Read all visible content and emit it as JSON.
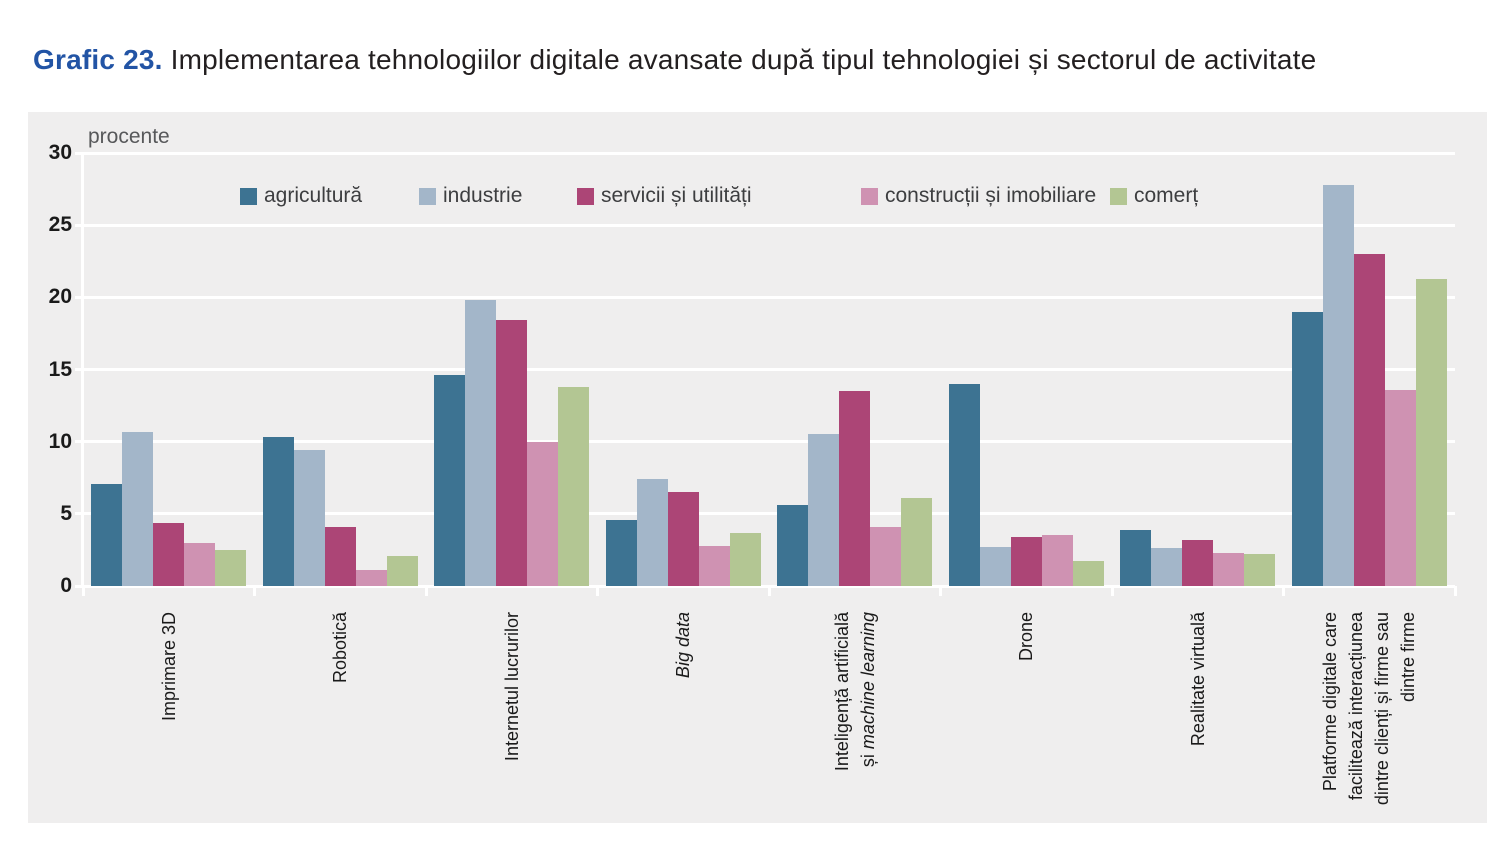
{
  "title": {
    "prefix": "Grafic 23.",
    "text": "Implementarea tehnologiilor digitale avansate după tipul tehnologiei și sectorul de activitate"
  },
  "chart_data": {
    "type": "bar",
    "title": "Grafic 23. Implementarea tehnologiilor digitale avansate după tipul tehnologiei și sectorul de activitate",
    "unit_label": "procente",
    "ylim": [
      0,
      30
    ],
    "yticks": [
      0,
      5,
      10,
      15,
      20,
      25,
      30
    ],
    "grid": true,
    "legend_position": "top-inside",
    "panel_bg": "#efeeee",
    "gridline_color": "#ffffff",
    "categories": [
      "Imprimare 3D",
      "Robotică",
      "Internetul lucrurilor",
      "Big data",
      "Inteligență artificială și machine learning",
      "Drone",
      "Realitate virtuală",
      "Platforme digitale care facilitează interacțiunea dintre clienți și firme sau dintre firme"
    ],
    "x_label_lines": [
      [
        [
          {
            "t": "Imprimare 3D"
          }
        ]
      ],
      [
        [
          {
            "t": "Robotică"
          }
        ]
      ],
      [
        [
          {
            "t": "Internetul lucrurilor"
          }
        ]
      ],
      [
        [
          {
            "t": "Big data",
            "i": true
          }
        ]
      ],
      [
        [
          {
            "t": "Inteligență artificială"
          }
        ],
        [
          {
            "t": "și "
          },
          {
            "t": "machine learning",
            "i": true
          }
        ]
      ],
      [
        [
          {
            "t": "Drone"
          }
        ]
      ],
      [
        [
          {
            "t": "Realitate virtuală"
          }
        ]
      ],
      [
        [
          {
            "t": "Platforme digitale care"
          }
        ],
        [
          {
            "t": "facilitează interacțiunea"
          }
        ],
        [
          {
            "t": "dintre clienți și firme sau"
          }
        ],
        [
          {
            "t": "dintre firme"
          }
        ]
      ]
    ],
    "series": [
      {
        "name": "agricultură",
        "color": "#3d7392",
        "values": [
          7.1,
          10.3,
          14.6,
          4.6,
          5.6,
          14.0,
          3.9,
          19.0
        ]
      },
      {
        "name": "industrie",
        "color": "#a3b6c9",
        "values": [
          10.7,
          9.4,
          19.8,
          7.4,
          10.5,
          2.7,
          2.6,
          27.8
        ]
      },
      {
        "name": "servicii și utilități",
        "color": "#ac4576",
        "values": [
          4.4,
          4.1,
          18.4,
          6.5,
          13.5,
          3.4,
          3.2,
          23.0
        ]
      },
      {
        "name": "construcții și imobiliare",
        "color": "#cf92b2",
        "values": [
          3.0,
          1.1,
          10.0,
          2.8,
          4.1,
          3.5,
          2.3,
          13.6
        ]
      },
      {
        "name": "comerț",
        "color": "#b3c693",
        "values": [
          2.5,
          2.1,
          13.8,
          3.7,
          6.1,
          1.7,
          2.2,
          21.3
        ]
      }
    ]
  }
}
